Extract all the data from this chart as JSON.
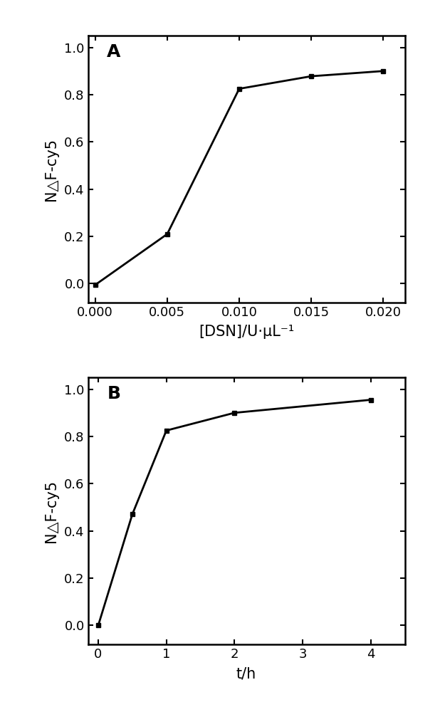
{
  "panel_A": {
    "x": [
      0.0,
      0.005,
      0.01,
      0.015,
      0.02
    ],
    "y": [
      -0.005,
      0.21,
      0.825,
      0.878,
      0.9
    ],
    "xlabel": "[DSN]/U·μL⁻¹",
    "ylabel": "N△F-cy5",
    "label": "A",
    "xlim": [
      -0.0005,
      0.0215
    ],
    "ylim": [
      -0.08,
      1.05
    ],
    "xticks": [
      0.0,
      0.005,
      0.01,
      0.015,
      0.02
    ],
    "xtick_labels": [
      "0.000",
      "0.005",
      "0.010",
      "0.015",
      "0.020"
    ],
    "yticks": [
      0.0,
      0.2,
      0.4,
      0.6,
      0.8,
      1.0
    ]
  },
  "panel_B": {
    "x": [
      0,
      0.5,
      1,
      2,
      4
    ],
    "y": [
      0.0,
      0.47,
      0.825,
      0.9,
      0.955
    ],
    "xlabel": "t/h",
    "ylabel": "N△F-cy5",
    "label": "B",
    "xlim": [
      -0.15,
      4.5
    ],
    "ylim": [
      -0.08,
      1.05
    ],
    "xticks": [
      0,
      1,
      2,
      3,
      4
    ],
    "yticks": [
      0.0,
      0.2,
      0.4,
      0.6,
      0.8,
      1.0
    ]
  },
  "line_color": "#000000",
  "marker": "s",
  "markersize": 5,
  "linewidth": 2.0,
  "spine_linewidth": 1.8,
  "tick_labelsize": 13,
  "axis_labelsize": 15,
  "panel_label_fontsize": 18,
  "background_color": "#ffffff"
}
